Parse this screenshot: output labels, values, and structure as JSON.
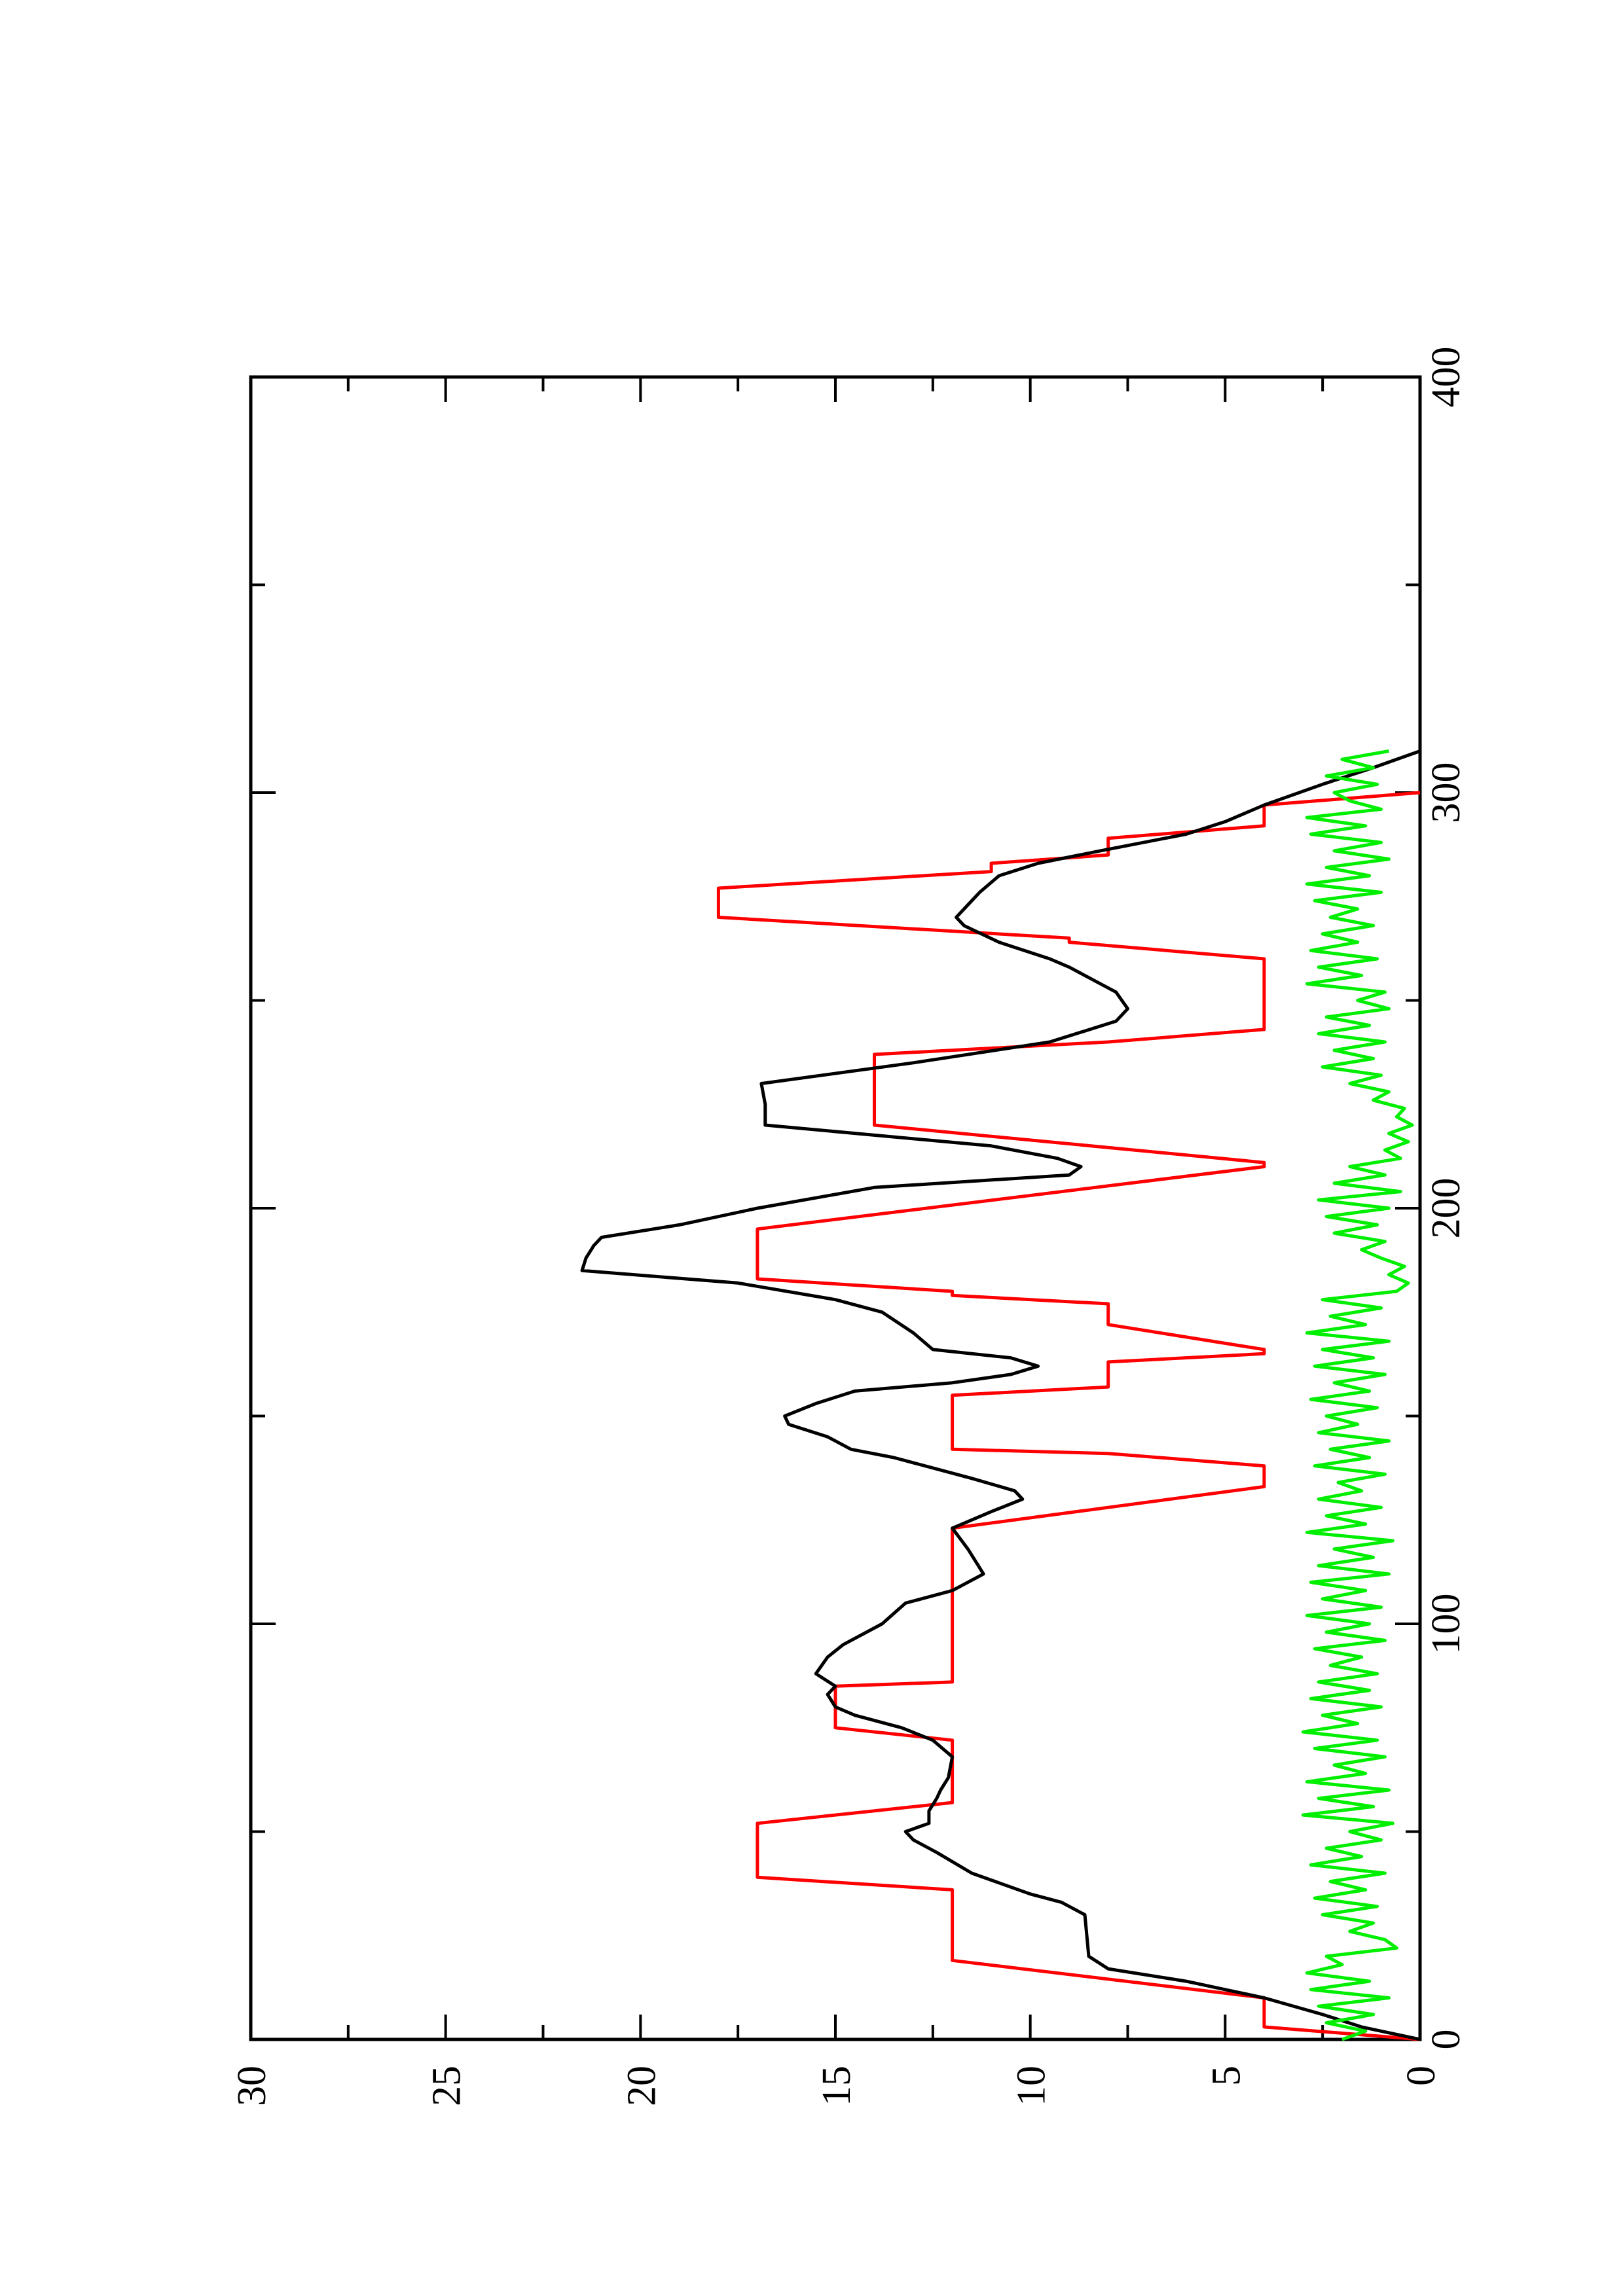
{
  "chart_data": {
    "type": "line",
    "orientation": "rotated-90-ccw",
    "title": "",
    "xlabel": "",
    "ylabel": "",
    "xlim": [
      0,
      400
    ],
    "ylim": [
      0,
      30
    ],
    "grid": false,
    "legend": "none",
    "x_tick_labels": [
      "0",
      "100",
      "200",
      "300",
      "400"
    ],
    "x_minor_ticks": [
      50,
      150,
      250,
      350
    ],
    "y_tick_labels": [
      "0",
      "5",
      "10",
      "15",
      "20",
      "25",
      "30"
    ],
    "y_minor_ticks": [
      2.5,
      7.5,
      12.5,
      17.5,
      22.5,
      27.5
    ],
    "series": [
      {
        "color": "#ff0000",
        "points": [
          [
            0,
            0
          ],
          [
            3,
            4
          ],
          [
            10,
            4
          ],
          [
            19,
            12
          ],
          [
            36,
            12
          ],
          [
            39,
            17
          ],
          [
            52,
            17
          ],
          [
            57,
            12
          ],
          [
            72,
            12
          ],
          [
            75,
            15
          ],
          [
            85,
            15
          ],
          [
            86,
            12
          ],
          [
            120,
            12
          ],
          [
            123,
            12
          ],
          [
            133,
            4
          ],
          [
            138,
            4
          ],
          [
            141,
            8
          ],
          [
            142,
            12
          ],
          [
            155,
            12
          ],
          [
            157,
            8
          ],
          [
            163,
            8
          ],
          [
            165,
            4
          ],
          [
            166,
            4
          ],
          [
            172,
            8
          ],
          [
            177,
            8
          ],
          [
            179,
            12
          ],
          [
            180,
            12
          ],
          [
            183,
            17
          ],
          [
            195,
            17
          ],
          [
            210,
            4
          ],
          [
            211,
            4
          ],
          [
            220,
            14
          ],
          [
            237,
            14
          ],
          [
            240,
            8
          ],
          [
            243,
            4
          ],
          [
            260,
            4
          ],
          [
            264,
            9
          ],
          [
            265,
            9
          ],
          [
            270,
            18
          ],
          [
            277,
            18
          ],
          [
            281,
            11
          ],
          [
            283,
            11
          ],
          [
            285,
            8
          ],
          [
            289,
            8
          ],
          [
            292,
            4
          ],
          [
            297,
            4
          ],
          [
            300,
            0
          ]
        ]
      },
      {
        "color": "#000000",
        "points": [
          [
            0,
            0
          ],
          [
            3,
            1.5
          ],
          [
            6,
            2.5
          ],
          [
            10,
            4
          ],
          [
            12,
            5
          ],
          [
            14,
            6
          ],
          [
            17,
            8
          ],
          [
            20,
            8.5
          ],
          [
            30,
            8.6
          ],
          [
            33,
            9.2
          ],
          [
            35,
            10
          ],
          [
            40,
            11.5
          ],
          [
            45,
            12.4
          ],
          [
            48,
            13
          ],
          [
            50,
            13.2
          ],
          [
            52,
            12.6
          ],
          [
            55,
            12.6
          ],
          [
            58,
            12.4
          ],
          [
            60,
            12.3
          ],
          [
            63,
            12.1
          ],
          [
            68,
            12.0
          ],
          [
            72,
            12.5
          ],
          [
            75,
            13.3
          ],
          [
            78,
            14.5
          ],
          [
            80,
            15.0
          ],
          [
            83,
            15.2
          ],
          [
            85,
            15.0
          ],
          [
            88,
            15.5
          ],
          [
            92,
            15.2
          ],
          [
            95,
            14.8
          ],
          [
            100,
            13.8
          ],
          [
            105,
            13.2
          ],
          [
            108,
            12.0
          ],
          [
            112,
            11.2
          ],
          [
            118,
            11.6
          ],
          [
            123,
            12.0
          ],
          [
            127,
            11.0
          ],
          [
            130,
            10.2
          ],
          [
            132,
            10.4
          ],
          [
            135,
            11.5
          ],
          [
            140,
            13.5
          ],
          [
            142,
            14.6
          ],
          [
            145,
            15.2
          ],
          [
            148,
            16.2
          ],
          [
            150,
            16.3
          ],
          [
            153,
            15.5
          ],
          [
            156,
            14.5
          ],
          [
            158,
            12.0
          ],
          [
            160,
            10.5
          ],
          [
            162,
            9.8
          ],
          [
            164,
            10.5
          ],
          [
            166,
            12.5
          ],
          [
            170,
            13.0
          ],
          [
            175,
            13.8
          ],
          [
            178,
            15.0
          ],
          [
            182,
            17.5
          ],
          [
            185,
            21.5
          ],
          [
            188,
            21.4
          ],
          [
            191,
            21.2
          ],
          [
            193,
            21.0
          ],
          [
            196,
            19.0
          ],
          [
            200,
            17.0
          ],
          [
            205,
            14.0
          ],
          [
            208,
            9.0
          ],
          [
            210,
            8.7
          ],
          [
            212,
            9.3
          ],
          [
            215,
            11.0
          ],
          [
            220,
            16.8
          ],
          [
            225,
            16.8
          ],
          [
            230,
            16.9
          ],
          [
            235,
            13.0
          ],
          [
            240,
            9.5
          ],
          [
            245,
            7.8
          ],
          [
            248,
            7.5
          ],
          [
            252,
            7.8
          ],
          [
            256,
            8.6
          ],
          [
            258,
            9.0
          ],
          [
            260,
            9.5
          ],
          [
            264,
            10.8
          ],
          [
            268,
            11.7
          ],
          [
            270,
            11.9
          ],
          [
            273,
            11.6
          ],
          [
            276,
            11.3
          ],
          [
            280,
            10.8
          ],
          [
            283,
            9.8
          ],
          [
            286,
            8.2
          ],
          [
            290,
            6.0
          ],
          [
            293,
            5.0
          ],
          [
            297,
            4.0
          ],
          [
            302,
            2.5
          ],
          [
            306,
            1.2
          ],
          [
            310,
            0
          ]
        ]
      },
      {
        "color": "#00ee00",
        "points": [
          [
            0,
            2.0
          ],
          [
            2,
            1.4
          ],
          [
            4,
            2.4
          ],
          [
            6,
            1.2
          ],
          [
            8,
            2.6
          ],
          [
            10,
            0.8
          ],
          [
            12,
            2.8
          ],
          [
            14,
            1.3
          ],
          [
            16,
            2.9
          ],
          [
            18,
            2.0
          ],
          [
            20,
            2.4
          ],
          [
            22,
            0.6
          ],
          [
            24,
            0.9
          ],
          [
            26,
            1.8
          ],
          [
            28,
            1.2
          ],
          [
            30,
            2.5
          ],
          [
            32,
            1.1
          ],
          [
            34,
            2.7
          ],
          [
            36,
            1.4
          ],
          [
            38,
            2.3
          ],
          [
            40,
            0.9
          ],
          [
            42,
            2.8
          ],
          [
            44,
            1.5
          ],
          [
            46,
            2.4
          ],
          [
            48,
            1.0
          ],
          [
            50,
            1.8
          ],
          [
            52,
            0.7
          ],
          [
            54,
            3.0
          ],
          [
            56,
            1.2
          ],
          [
            58,
            2.6
          ],
          [
            60,
            0.8
          ],
          [
            62,
            2.9
          ],
          [
            64,
            1.4
          ],
          [
            66,
            2.2
          ],
          [
            68,
            0.9
          ],
          [
            70,
            2.7
          ],
          [
            72,
            1.1
          ],
          [
            74,
            3.0
          ],
          [
            76,
            1.6
          ],
          [
            78,
            2.5
          ],
          [
            80,
            1.0
          ],
          [
            82,
            2.8
          ],
          [
            84,
            1.3
          ],
          [
            86,
            2.6
          ],
          [
            88,
            1.1
          ],
          [
            90,
            2.3
          ],
          [
            92,
            1.5
          ],
          [
            94,
            2.7
          ],
          [
            96,
            0.9
          ],
          [
            98,
            2.4
          ],
          [
            100,
            1.3
          ],
          [
            102,
            2.9
          ],
          [
            104,
            1.0
          ],
          [
            106,
            2.5
          ],
          [
            108,
            1.4
          ],
          [
            110,
            2.8
          ],
          [
            112,
            0.8
          ],
          [
            114,
            2.6
          ],
          [
            116,
            1.2
          ],
          [
            118,
            2.2
          ],
          [
            120,
            0.7
          ],
          [
            122,
            2.9
          ],
          [
            124,
            1.4
          ],
          [
            126,
            2.4
          ],
          [
            128,
            1.0
          ],
          [
            130,
            2.6
          ],
          [
            132,
            1.5
          ],
          [
            134,
            2.1
          ],
          [
            136,
            0.9
          ],
          [
            138,
            2.7
          ],
          [
            140,
            1.3
          ],
          [
            142,
            2.3
          ],
          [
            144,
            0.8
          ],
          [
            146,
            2.6
          ],
          [
            148,
            1.6
          ],
          [
            150,
            2.4
          ],
          [
            152,
            1.1
          ],
          [
            154,
            2.8
          ],
          [
            156,
            1.3
          ],
          [
            158,
            2.2
          ],
          [
            160,
            0.9
          ],
          [
            162,
            2.7
          ],
          [
            164,
            1.2
          ],
          [
            166,
            2.5
          ],
          [
            168,
            0.8
          ],
          [
            170,
            2.9
          ],
          [
            172,
            1.4
          ],
          [
            174,
            2.3
          ],
          [
            176,
            1.0
          ],
          [
            178,
            2.5
          ],
          [
            180,
            0.6
          ],
          [
            182,
            0.3
          ],
          [
            184,
            0.8
          ],
          [
            186,
            0.4
          ],
          [
            188,
            1.0
          ],
          [
            190,
            1.5
          ],
          [
            192,
            0.9
          ],
          [
            194,
            2.2
          ],
          [
            196,
            1.1
          ],
          [
            198,
            2.4
          ],
          [
            200,
            0.8
          ],
          [
            202,
            2.6
          ],
          [
            204,
            0.5
          ],
          [
            206,
            2.2
          ],
          [
            208,
            0.9
          ],
          [
            210,
            1.8
          ],
          [
            212,
            0.5
          ],
          [
            214,
            0.9
          ],
          [
            216,
            0.3
          ],
          [
            218,
            0.8
          ],
          [
            220,
            0.2
          ],
          [
            222,
            0.6
          ],
          [
            224,
            0.4
          ],
          [
            226,
            1.2
          ],
          [
            228,
            0.8
          ],
          [
            230,
            1.8
          ],
          [
            232,
            1.0
          ],
          [
            234,
            2.5
          ],
          [
            236,
            1.2
          ],
          [
            238,
            2.2
          ],
          [
            240,
            0.9
          ],
          [
            242,
            2.6
          ],
          [
            244,
            1.3
          ],
          [
            246,
            2.4
          ],
          [
            248,
            0.8
          ],
          [
            250,
            1.6
          ],
          [
            252,
            0.9
          ],
          [
            254,
            2.9
          ],
          [
            256,
            1.5
          ],
          [
            258,
            2.6
          ],
          [
            260,
            1.1
          ],
          [
            262,
            2.8
          ],
          [
            264,
            1.6
          ],
          [
            266,
            2.5
          ],
          [
            268,
            1.2
          ],
          [
            270,
            2.3
          ],
          [
            272,
            1.6
          ],
          [
            274,
            2.7
          ],
          [
            276,
            1.0
          ],
          [
            278,
            2.9
          ],
          [
            280,
            1.3
          ],
          [
            282,
            2.4
          ],
          [
            284,
            0.8
          ],
          [
            286,
            2.2
          ],
          [
            288,
            1.0
          ],
          [
            290,
            2.8
          ],
          [
            292,
            1.4
          ],
          [
            294,
            2.9
          ],
          [
            296,
            1.0
          ],
          [
            298,
            1.8
          ],
          [
            300,
            2.2
          ],
          [
            302,
            1.1
          ],
          [
            304,
            2.4
          ],
          [
            306,
            1.2
          ],
          [
            308,
            2.0
          ],
          [
            310,
            0.8
          ]
        ]
      }
    ]
  }
}
